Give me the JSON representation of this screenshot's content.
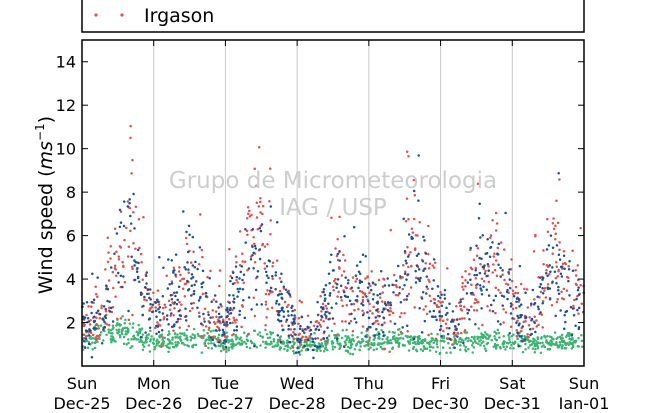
{
  "chart_data": {
    "type": "scatter",
    "ylabel": "Wind speed (ms⁻¹)",
    "ylabel_main": "Wind speed (",
    "ylabel_unit": "ms",
    "ylabel_exp": "−1",
    "ylabel_close": ")",
    "ylim": [
      0,
      15
    ],
    "yticks": [
      2,
      4,
      6,
      8,
      10,
      12,
      14
    ],
    "x_range_days": [
      0,
      7
    ],
    "grid": "vertical",
    "legend_placement": "top",
    "watermark": {
      "line1": "Grupo de Micrometeorologia",
      "line2": "IAG / USP"
    },
    "xticks": [
      {
        "day": "Sun",
        "date": "Dec-25"
      },
      {
        "day": "Mon",
        "date": "Dec-26"
      },
      {
        "day": "Tue",
        "date": "Dec-27"
      },
      {
        "day": "Wed",
        "date": "Dec-28"
      },
      {
        "day": "Thu",
        "date": "Dec-29"
      },
      {
        "day": "Fri",
        "date": "Dec-30"
      },
      {
        "day": "Sat",
        "date": "Dec-31"
      },
      {
        "day": "Sun",
        "date": "Jan-01"
      }
    ],
    "series": [
      {
        "name": "Irgason",
        "color": "#d9534f",
        "values_profile": [
          [
            0.0,
            2.0
          ],
          [
            0.3,
            2.2
          ],
          [
            0.5,
            4.5
          ],
          [
            0.7,
            6.5
          ],
          [
            0.85,
            3.2
          ],
          [
            1.0,
            2.6
          ],
          [
            1.2,
            2.6
          ],
          [
            1.5,
            4.5
          ],
          [
            1.8,
            2.0
          ],
          [
            2.0,
            2.0
          ],
          [
            2.2,
            4.2
          ],
          [
            2.5,
            6.0
          ],
          [
            2.8,
            2.8
          ],
          [
            3.0,
            1.8
          ],
          [
            3.2,
            1.5
          ],
          [
            3.4,
            2.6
          ],
          [
            3.6,
            4.2
          ],
          [
            3.75,
            3.3
          ],
          [
            4.0,
            2.8
          ],
          [
            4.2,
            2.6
          ],
          [
            4.4,
            3.2
          ],
          [
            4.6,
            5.5
          ],
          [
            4.85,
            4.0
          ],
          [
            5.0,
            2.6
          ],
          [
            5.2,
            1.5
          ],
          [
            5.4,
            3.5
          ],
          [
            5.6,
            4.2
          ],
          [
            5.8,
            4.5
          ],
          [
            6.0,
            3.2
          ],
          [
            6.2,
            1.6
          ],
          [
            6.4,
            3.5
          ],
          [
            6.6,
            5.0
          ],
          [
            6.8,
            3.2
          ],
          [
            7.0,
            3.0
          ]
        ]
      },
      {
        "name": "",
        "color": "#1f4f8f",
        "values_profile": [
          [
            0.0,
            1.9
          ],
          [
            0.3,
            2.1
          ],
          [
            0.5,
            4.3
          ],
          [
            0.7,
            6.2
          ],
          [
            0.85,
            3.0
          ],
          [
            1.0,
            2.5
          ],
          [
            1.2,
            2.5
          ],
          [
            1.5,
            4.4
          ],
          [
            1.8,
            1.9
          ],
          [
            2.0,
            1.9
          ],
          [
            2.2,
            4.0
          ],
          [
            2.5,
            5.7
          ],
          [
            2.8,
            2.7
          ],
          [
            3.0,
            1.7
          ],
          [
            3.2,
            1.4
          ],
          [
            3.4,
            2.5
          ],
          [
            3.6,
            4.0
          ],
          [
            3.75,
            3.2
          ],
          [
            4.0,
            2.7
          ],
          [
            4.2,
            2.5
          ],
          [
            4.4,
            3.1
          ],
          [
            4.6,
            5.3
          ],
          [
            4.85,
            3.9
          ],
          [
            5.0,
            2.5
          ],
          [
            5.2,
            1.4
          ],
          [
            5.4,
            3.4
          ],
          [
            5.6,
            4.0
          ],
          [
            5.8,
            4.3
          ],
          [
            6.0,
            3.1
          ],
          [
            6.2,
            1.5
          ],
          [
            6.4,
            3.4
          ],
          [
            6.6,
            4.8
          ],
          [
            6.8,
            3.1
          ],
          [
            7.0,
            2.9
          ]
        ]
      },
      {
        "name": "",
        "color": "#3cb371",
        "values_profile": [
          [
            0.0,
            1.1
          ],
          [
            0.3,
            1.5
          ],
          [
            0.6,
            1.6
          ],
          [
            1.0,
            1.1
          ],
          [
            1.5,
            1.2
          ],
          [
            2.0,
            1.1
          ],
          [
            2.5,
            1.2
          ],
          [
            3.0,
            0.9
          ],
          [
            3.5,
            1.1
          ],
          [
            4.0,
            1.1
          ],
          [
            4.5,
            1.2
          ],
          [
            5.0,
            1.0
          ],
          [
            5.5,
            1.2
          ],
          [
            6.0,
            1.1
          ],
          [
            6.5,
            1.1
          ],
          [
            7.0,
            1.1
          ]
        ]
      }
    ]
  }
}
